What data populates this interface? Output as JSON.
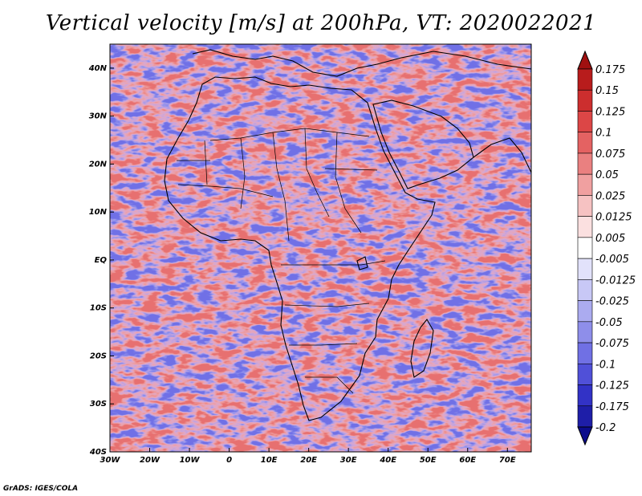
{
  "title": "Vertical velocity [m/s] at 200hPa, VT: 2020022021",
  "credit": "GrADS: IGES/COLA",
  "map": {
    "lon_range": [
      -30,
      76
    ],
    "lat_range": [
      -40,
      45
    ],
    "lon_ticks": [
      {
        "value": -30,
        "label": "30W"
      },
      {
        "value": -20,
        "label": "20W"
      },
      {
        "value": -10,
        "label": "10W"
      },
      {
        "value": 0,
        "label": "0"
      },
      {
        "value": 10,
        "label": "10E"
      },
      {
        "value": 20,
        "label": "20E"
      },
      {
        "value": 30,
        "label": "30E"
      },
      {
        "value": 40,
        "label": "40E"
      },
      {
        "value": 50,
        "label": "50E"
      },
      {
        "value": 60,
        "label": "60E"
      },
      {
        "value": 70,
        "label": "70E"
      }
    ],
    "lat_ticks": [
      {
        "value": 40,
        "label": "40N"
      },
      {
        "value": 30,
        "label": "30N"
      },
      {
        "value": 20,
        "label": "20N"
      },
      {
        "value": 10,
        "label": "10N"
      },
      {
        "value": 0,
        "label": "EQ"
      },
      {
        "value": -10,
        "label": "10S"
      },
      {
        "value": -20,
        "label": "20S"
      },
      {
        "value": -30,
        "label": "30S"
      },
      {
        "value": -40,
        "label": "40S"
      }
    ],
    "coastline_color": "#000000",
    "field_colors": {
      "neutral": "#ffffff",
      "negative": "#6f6fe8",
      "positive": "#e86f6f"
    }
  },
  "colorbar": {
    "levels": [
      "0.175",
      "0.15",
      "0.125",
      "0.1",
      "0.075",
      "0.05",
      "0.025",
      "0.0125",
      "0.005",
      "-0.005",
      "-0.0125",
      "-0.025",
      "-0.05",
      "-0.075",
      "-0.1",
      "-0.125",
      "-0.175",
      "-0.2"
    ],
    "colors": [
      "#a01010",
      "#b81c1c",
      "#cc2e2e",
      "#dc4646",
      "#e46262",
      "#ea8080",
      "#f0a0a0",
      "#f6c2c2",
      "#fbe0e0",
      "#ffffff",
      "#e2e2fb",
      "#c8c8f6",
      "#ababf0",
      "#8e8eea",
      "#7070e4",
      "#5050d8",
      "#3232c6",
      "#1e1ea8",
      "#0c0c8c"
    ]
  }
}
